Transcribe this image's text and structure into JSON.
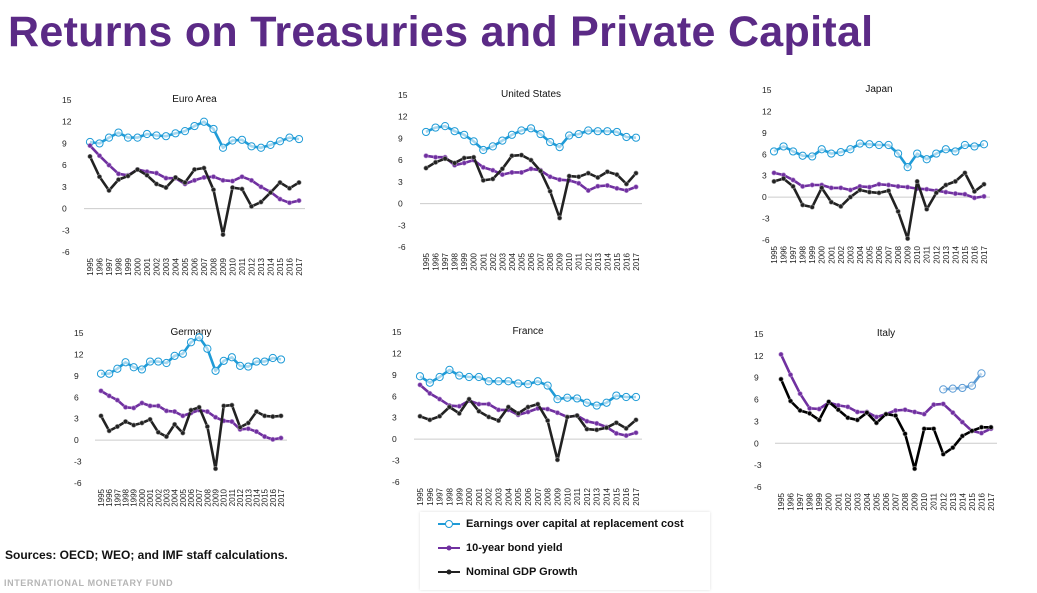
{
  "title": "Returns on Treasuries and Private Capital",
  "sources": "Sources: OECD; WEO; and IMF staff calculations.",
  "footer": "INTERNATIONAL MONETARY FUND",
  "legend": [
    {
      "label": "Earnings over capital at replacement cost",
      "color": "#1F9BD7"
    },
    {
      "label": "10-year bond yield",
      "color": "#7030A0"
    },
    {
      "label": "Nominal GDP Growth",
      "color": "#222222"
    }
  ],
  "chart_data": [
    {
      "type": "line",
      "title": "Euro Area",
      "ylim": [
        -6,
        15
      ],
      "yticks": [
        15,
        12,
        9,
        6,
        3,
        0,
        -3,
        -6
      ],
      "x": [
        "1995",
        "1996",
        "1997",
        "1998",
        "1999",
        "2000",
        "2001",
        "2002",
        "2003",
        "2004",
        "2005",
        "2006",
        "2007",
        "2008",
        "2009",
        "2010",
        "2011",
        "2012",
        "2013",
        "2014",
        "2015",
        "2016",
        "2017"
      ],
      "series": [
        {
          "name": "Earnings over capital at replacement cost",
          "values": [
            9.2,
            9.0,
            9.8,
            10.5,
            9.8,
            9.8,
            10.3,
            10.1,
            10.0,
            10.4,
            10.7,
            11.4,
            12.0,
            11.0,
            8.4,
            9.4,
            9.5,
            8.6,
            8.4,
            8.8,
            9.3,
            9.8,
            9.6
          ]
        },
        {
          "name": "10-year bond yield",
          "values": [
            8.7,
            7.3,
            6.0,
            4.8,
            4.6,
            5.4,
            5.1,
            4.9,
            4.2,
            4.2,
            3.4,
            3.9,
            4.3,
            4.4,
            3.9,
            3.8,
            4.4,
            3.9,
            3.0,
            2.3,
            1.3,
            0.8,
            1.1
          ]
        },
        {
          "name": "Nominal GDP Growth",
          "values": [
            7.2,
            4.4,
            2.5,
            4.0,
            4.5,
            5.4,
            4.6,
            3.4,
            2.9,
            4.3,
            3.6,
            5.4,
            5.6,
            2.6,
            -3.6,
            2.9,
            2.7,
            0.3,
            0.9,
            2.2,
            3.6,
            2.8,
            3.6
          ]
        }
      ]
    },
    {
      "type": "line",
      "title": "United States",
      "ylim": [
        -6,
        15
      ],
      "yticks": [
        15,
        12,
        9,
        6,
        3,
        0,
        -3,
        -6
      ],
      "x": [
        "1995",
        "1996",
        "1997",
        "1998",
        "1999",
        "2000",
        "2001",
        "2002",
        "2003",
        "2004",
        "2005",
        "2006",
        "2007",
        "2008",
        "2009",
        "2010",
        "2011",
        "2012",
        "2013",
        "2014",
        "2015",
        "2016",
        "2017"
      ],
      "series": [
        {
          "name": "Earnings over capital at replacement cost",
          "values": [
            9.9,
            10.5,
            10.7,
            10.0,
            9.5,
            8.6,
            7.4,
            7.9,
            8.7,
            9.5,
            10.1,
            10.4,
            9.6,
            8.5,
            7.8,
            9.4,
            9.6,
            10.1,
            10.0,
            10.0,
            9.9,
            9.2,
            9.1
          ]
        },
        {
          "name": "10-year bond yield",
          "values": [
            6.6,
            6.4,
            6.4,
            5.3,
            5.6,
            6.0,
            5.0,
            4.6,
            4.0,
            4.3,
            4.3,
            4.8,
            4.6,
            3.7,
            3.3,
            3.2,
            2.8,
            1.8,
            2.4,
            2.5,
            2.1,
            1.8,
            2.3
          ]
        },
        {
          "name": "Nominal GDP Growth",
          "values": [
            4.9,
            5.7,
            6.2,
            5.6,
            6.3,
            6.4,
            3.2,
            3.4,
            4.8,
            6.6,
            6.7,
            6.0,
            4.5,
            1.7,
            -2.0,
            3.8,
            3.7,
            4.2,
            3.6,
            4.4,
            4.0,
            2.7,
            4.2
          ]
        }
      ]
    },
    {
      "type": "line",
      "title": "Japan",
      "ylim": [
        -6,
        15
      ],
      "yticks": [
        15,
        12,
        9,
        6,
        3,
        0,
        -3,
        -6
      ],
      "x": [
        "1995",
        "1996",
        "1997",
        "1998",
        "1999",
        "2000",
        "2001",
        "2002",
        "2003",
        "2004",
        "2005",
        "2006",
        "2007",
        "2008",
        "2009",
        "2010",
        "2011",
        "2012",
        "2013",
        "2014",
        "2015",
        "2016",
        "2017"
      ],
      "series": [
        {
          "name": "Earnings over capital at replacement cost",
          "values": [
            6.4,
            7.1,
            6.4,
            5.8,
            5.7,
            6.7,
            6.1,
            6.3,
            6.7,
            7.5,
            7.4,
            7.3,
            7.3,
            6.1,
            4.2,
            6.1,
            5.3,
            6.1,
            6.7,
            6.4,
            7.3,
            7.1,
            7.4
          ]
        },
        {
          "name": "10-year bond yield",
          "values": [
            3.4,
            3.1,
            2.4,
            1.5,
            1.7,
            1.7,
            1.3,
            1.3,
            1.0,
            1.5,
            1.4,
            1.8,
            1.7,
            1.5,
            1.4,
            1.2,
            1.1,
            0.9,
            0.7,
            0.5,
            0.4,
            -0.1,
            0.1
          ]
        },
        {
          "name": "Nominal GDP Growth",
          "values": [
            2.2,
            2.6,
            1.5,
            -1.1,
            -1.4,
            1.3,
            -0.7,
            -1.3,
            0.0,
            1.0,
            0.7,
            0.6,
            0.9,
            -2.0,
            -5.8,
            2.2,
            -1.7,
            0.6,
            1.7,
            2.2,
            3.4,
            0.8,
            1.8
          ]
        }
      ]
    },
    {
      "type": "line",
      "title": "Germany",
      "ylim": [
        -6,
        15
      ],
      "yticks": [
        15,
        12,
        9,
        6,
        3,
        0,
        -3,
        -6
      ],
      "x": [
        "1995",
        "1996",
        "1997",
        "1998",
        "1999",
        "2000",
        "2001",
        "2002",
        "2003",
        "2004",
        "2005",
        "2006",
        "2007",
        "2008",
        "2009",
        "2010",
        "2011",
        "2012",
        "2013",
        "2014",
        "2015",
        "2016",
        "2017"
      ],
      "series": [
        {
          "name": "Earnings over capital at replacement cost",
          "values": [
            9.3,
            9.3,
            10.0,
            10.9,
            10.2,
            9.9,
            11.0,
            11.0,
            10.8,
            11.8,
            12.1,
            13.7,
            14.4,
            12.8,
            9.7,
            11.1,
            11.6,
            10.4,
            10.3,
            11.0,
            11.0,
            11.5,
            11.3
          ]
        },
        {
          "name": "10-year bond yield",
          "values": [
            6.9,
            6.2,
            5.6,
            4.6,
            4.5,
            5.2,
            4.8,
            4.8,
            4.1,
            4.0,
            3.4,
            3.8,
            4.2,
            4.0,
            3.2,
            2.7,
            2.6,
            1.5,
            1.6,
            1.2,
            0.5,
            0.1,
            0.3
          ]
        },
        {
          "name": "Nominal GDP Growth",
          "values": [
            3.4,
            1.3,
            1.9,
            2.6,
            2.1,
            2.4,
            2.9,
            1.1,
            0.5,
            2.2,
            1.0,
            4.2,
            4.6,
            1.9,
            -4.0,
            4.8,
            4.9,
            1.8,
            2.4,
            4.0,
            3.4,
            3.3,
            3.4
          ]
        }
      ]
    },
    {
      "type": "line",
      "title": "France",
      "ylim": [
        -6,
        15
      ],
      "yticks": [
        15,
        12,
        9,
        6,
        3,
        0,
        -3,
        -6
      ],
      "x": [
        "1995",
        "1996",
        "1997",
        "1998",
        "1999",
        "2000",
        "2001",
        "2002",
        "2003",
        "2004",
        "2005",
        "2006",
        "2007",
        "2008",
        "2009",
        "2010",
        "2011",
        "2012",
        "2013",
        "2014",
        "2015",
        "2016",
        "2017"
      ],
      "series": [
        {
          "name": "Earnings over capital at replacement cost",
          "values": [
            8.8,
            7.9,
            8.7,
            9.7,
            8.9,
            8.7,
            8.7,
            8.1,
            8.1,
            8.1,
            7.8,
            7.7,
            8.1,
            7.5,
            5.6,
            5.8,
            5.7,
            5.1,
            4.7,
            5.1,
            6.1,
            5.9,
            5.9
          ]
        },
        {
          "name": "10-year bond yield",
          "values": [
            7.6,
            6.4,
            5.6,
            4.7,
            4.6,
            5.4,
            4.9,
            4.9,
            4.1,
            4.1,
            3.4,
            3.8,
            4.3,
            4.2,
            3.7,
            3.1,
            3.3,
            2.5,
            2.2,
            1.7,
            0.8,
            0.5,
            0.9
          ]
        },
        {
          "name": "Nominal GDP Growth",
          "values": [
            3.2,
            2.7,
            3.2,
            4.5,
            3.6,
            5.6,
            3.9,
            3.1,
            2.6,
            4.5,
            3.6,
            4.5,
            4.9,
            2.6,
            -2.9,
            3.1,
            3.3,
            1.4,
            1.3,
            1.6,
            2.3,
            1.5,
            2.7
          ]
        }
      ]
    },
    {
      "type": "line",
      "title": "Italy",
      "ylim": [
        -6,
        15
      ],
      "yticks": [
        15,
        12,
        9,
        6,
        3,
        0,
        -3,
        -6
      ],
      "x": [
        "1995",
        "1996",
        "1997",
        "1998",
        "1999",
        "2000",
        "2001",
        "2002",
        "2003",
        "2004",
        "2005",
        "2006",
        "2007",
        "2008",
        "2009",
        "2010",
        "2011",
        "2012",
        "2013",
        "2014",
        "2015",
        "2016",
        "2017"
      ],
      "series": [
        {
          "name": "Earnings over capital at replacement cost",
          "values": [
            null,
            null,
            null,
            null,
            null,
            null,
            null,
            null,
            null,
            null,
            null,
            null,
            null,
            null,
            null,
            null,
            null,
            7.4,
            7.5,
            7.6,
            7.9,
            9.6,
            null
          ]
        },
        {
          "name": "10-year bond yield",
          "values": [
            12.2,
            9.4,
            6.8,
            4.8,
            4.7,
            5.6,
            5.2,
            5.0,
            4.3,
            4.3,
            3.6,
            4.0,
            4.5,
            4.6,
            4.3,
            4.0,
            5.3,
            5.4,
            4.2,
            2.9,
            1.7,
            1.4,
            2.0
          ]
        },
        {
          "name": "Nominal GDP Growth",
          "values": [
            8.8,
            5.8,
            4.5,
            4.1,
            3.2,
            5.7,
            4.6,
            3.5,
            3.2,
            4.2,
            2.8,
            4.0,
            3.8,
            1.3,
            -3.5,
            2.0,
            2.0,
            -1.5,
            -0.6,
            1.0,
            1.7,
            2.2,
            2.2
          ]
        }
      ]
    }
  ]
}
